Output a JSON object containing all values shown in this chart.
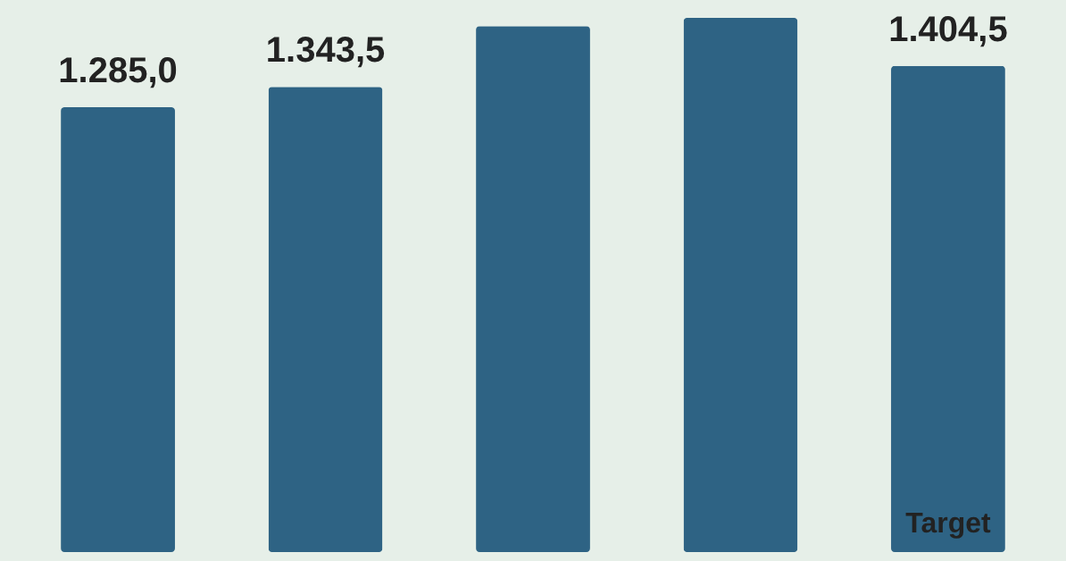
{
  "chart_data": {
    "type": "bar",
    "categories": [
      null,
      null,
      null,
      null,
      null
    ],
    "values": [
      1285.0,
      1343.5,
      1519,
      1543,
      1404.5
    ],
    "value_labels": [
      "1.285,0",
      "1.343,5",
      null,
      null,
      "1.404,5"
    ],
    "color": "#2e6384",
    "tick_labels": false,
    "annotations": [
      "Target"
    ]
  }
}
